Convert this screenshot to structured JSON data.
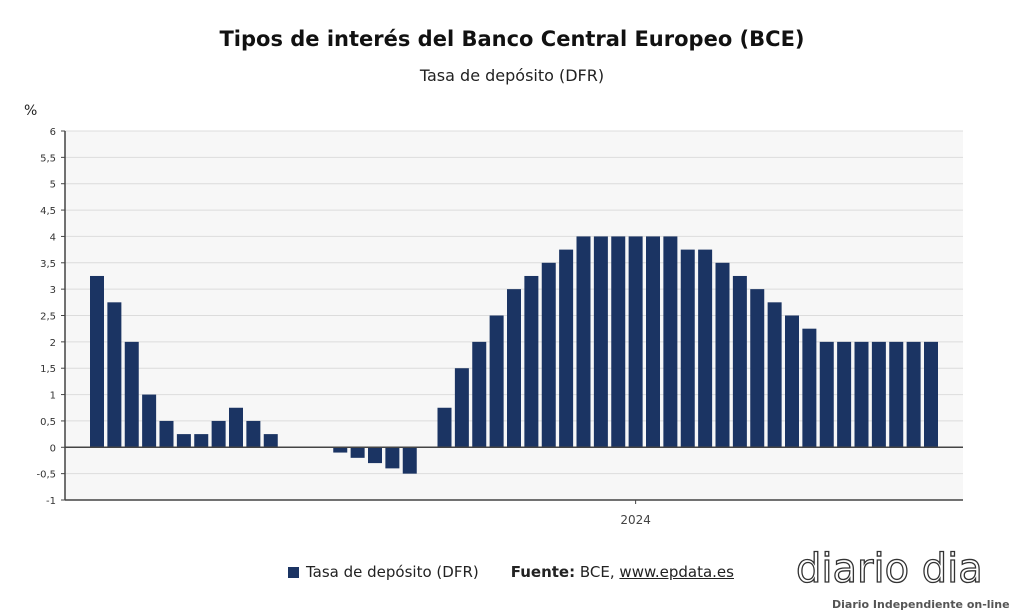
{
  "chart_data": {
    "type": "bar",
    "title": "Tipos de interés del Banco Central Europeo (BCE)",
    "subtitle": "Tasa de depósito (DFR)",
    "ylabel": "%",
    "xlabel": "",
    "ylim": [
      -1,
      6
    ],
    "yticks": [
      -1,
      -0.5,
      0,
      0.5,
      1,
      1.5,
      2,
      2.5,
      3,
      3.5,
      4,
      4.5,
      5,
      5.5,
      6
    ],
    "ytick_labels": [
      "-1",
      "-0,5",
      "0",
      "0,5",
      "1",
      "1,5",
      "2",
      "2,5",
      "3",
      "3,5",
      "4",
      "4,5",
      "5",
      "5,5",
      "6"
    ],
    "xtick_labels": [
      {
        "index": 31,
        "label": "2024"
      }
    ],
    "grid": true,
    "color": "#1b3463",
    "series": [
      {
        "name": "Tasa de depósito (DFR)",
        "values": [
          3.25,
          2.75,
          2,
          1,
          0.5,
          0.25,
          0.25,
          0.5,
          0.75,
          0.5,
          0.25,
          null,
          null,
          null,
          -0.1,
          -0.2,
          -0.3,
          -0.4,
          -0.5,
          null,
          0.75,
          1.5,
          2,
          2.5,
          3,
          3.25,
          3.5,
          3.75,
          4,
          4,
          4,
          4,
          4,
          4,
          3.75,
          3.75,
          3.5,
          3.25,
          3,
          2.75,
          2.5,
          2.25,
          2,
          2,
          2,
          2,
          2,
          2,
          2
        ]
      }
    ],
    "legend_placement": "bottom"
  },
  "legend": {
    "series_label": "Tasa de depósito (DFR)",
    "source_label": "Fuente:",
    "source_text": "BCE,",
    "source_link": "www.epdata.es"
  },
  "logo": {
    "word": "diario dia",
    "tagline": "Diario Independiente on-line"
  }
}
